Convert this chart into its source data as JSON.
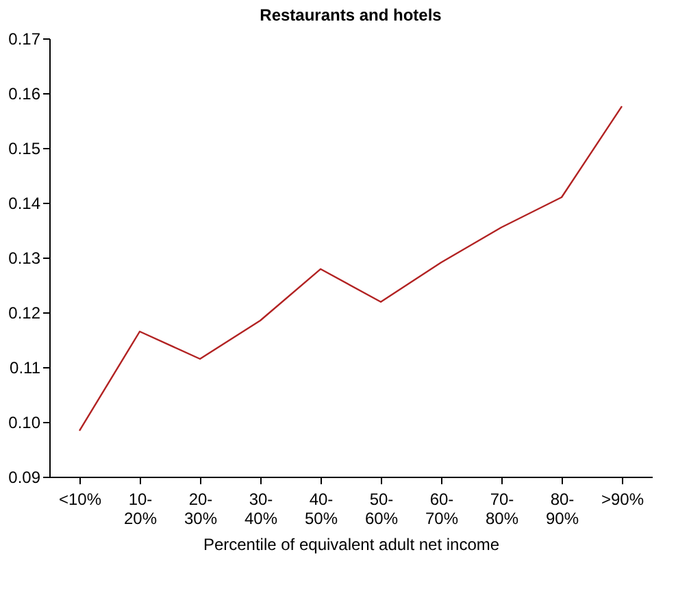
{
  "chart_data": {
    "type": "line",
    "title": "Restaurants and hotels",
    "xlabel": "Percentile of equivalent adult net income",
    "categories": [
      "<10%",
      "10-\n20%",
      "20-\n30%",
      "30-\n40%",
      "40-\n50%",
      "50-\n60%",
      "60-\n70%",
      "70-\n80%",
      "80-\n90%",
      ">90%"
    ],
    "series": [
      {
        "color": "#b22222",
        "values": [
          0.0984,
          0.1165,
          0.1115,
          0.1185,
          0.1279,
          0.1219,
          0.1291,
          0.1355,
          0.141,
          0.1576
        ]
      }
    ],
    "ylim": [
      0.09,
      0.17
    ],
    "yticks": [
      {
        "value": 0.09,
        "label": "0.09"
      },
      {
        "value": 0.1,
        "label": "0.10"
      },
      {
        "value": 0.11,
        "label": "0.11"
      },
      {
        "value": 0.12,
        "label": "0.12"
      },
      {
        "value": 0.13,
        "label": "0.13"
      },
      {
        "value": 0.14,
        "label": "0.14"
      },
      {
        "value": 0.15,
        "label": "0.15"
      },
      {
        "value": 0.16,
        "label": "0.16"
      },
      {
        "value": 0.17,
        "label": "0.17"
      }
    ],
    "grid": false,
    "marker": "none",
    "line_style": "solid"
  }
}
